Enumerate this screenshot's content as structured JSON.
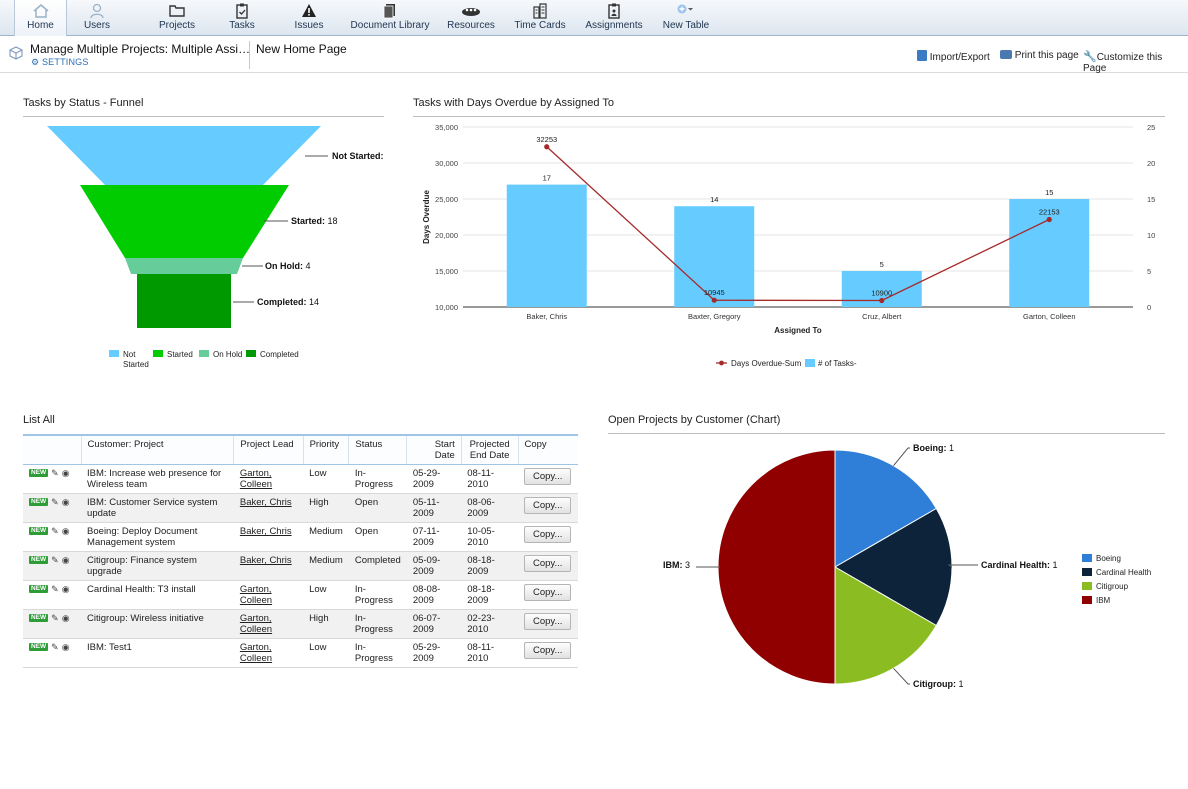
{
  "nav": {
    "items": [
      {
        "label": "Home",
        "icon": "home-icon"
      },
      {
        "label": "Users",
        "icon": "user-icon"
      },
      {
        "label": "Projects",
        "icon": "folder-icon"
      },
      {
        "label": "Tasks",
        "icon": "clipboard-icon"
      },
      {
        "label": "Issues",
        "icon": "warning-icon"
      },
      {
        "label": "Document Library",
        "icon": "documents-icon"
      },
      {
        "label": "Resources",
        "icon": "resources-icon"
      },
      {
        "label": "Time Cards",
        "icon": "building-icon"
      },
      {
        "label": "Assignments",
        "icon": "assignment-icon"
      },
      {
        "label": "New Table",
        "icon": "add-icon"
      }
    ]
  },
  "header": {
    "project_title": "Manage Multiple Projects: Multiple Assi…",
    "settings_label": "SETTINGS",
    "page_name": "New Home Page",
    "import_export": "Import/Export",
    "print": "Print this page",
    "customize": "Customize this Page"
  },
  "funnel": {
    "title": "Tasks by Status - Funnel",
    "chart_data": {
      "type": "funnel",
      "categories": [
        "Not Started",
        "Started",
        "On Hold",
        "Completed"
      ],
      "values": [
        null,
        18,
        4,
        14
      ],
      "labels": [
        "Not Started:",
        "Started: 18",
        "On Hold: 4",
        "Completed: 14"
      ],
      "legend": [
        "Not Started",
        "Started",
        "On Hold",
        "Completed"
      ],
      "colors": [
        "#66ccff",
        "#00cc00",
        "#66cc99",
        "#009900"
      ]
    }
  },
  "combo": {
    "title": "Tasks with Days Overdue by Assigned To",
    "chart_data": {
      "type": "bar",
      "categories": [
        "Baker, Chris",
        "Baxter, Gregory",
        "Cruz, Albert",
        "Garton, Colleen"
      ],
      "series": [
        {
          "name": "# of Tasks-",
          "type": "bar",
          "axis": "right",
          "values": [
            17,
            14,
            5,
            15
          ]
        },
        {
          "name": "Days Overdue-Sum",
          "type": "line",
          "axis": "left",
          "values": [
            32253,
            10945,
            10900,
            22153
          ]
        }
      ],
      "xlabel": "Assigned To",
      "ylabel": "Days Overdue",
      "ylim": [
        10000,
        35000
      ],
      "yticks": [
        "10,000",
        "15,000",
        "20,000",
        "25,000",
        "30,000",
        "35,000"
      ],
      "y2lim": [
        0,
        25
      ],
      "y2ticks": [
        "0",
        "5",
        "10",
        "15",
        "20",
        "25"
      ],
      "colors": {
        "bar": "#66ccff",
        "line": "#a52a2a"
      },
      "legend": "bottom"
    }
  },
  "list": {
    "title": "List All",
    "columns": [
      "",
      "Customer: Project",
      "Project Lead",
      "Priority",
      "Status",
      "Start Date",
      "Projected End Date",
      "Copy"
    ],
    "new_badge": "NEW",
    "copy_label": "Copy...",
    "rows": [
      {
        "project": "IBM: Increase web presence for Wireless team",
        "lead": "Garton, Colleen",
        "priority": "Low",
        "status": "In-Progress",
        "start": "05-29-2009",
        "end": "08-11-2010"
      },
      {
        "project": "IBM: Customer Service system update",
        "lead": "Baker, Chris",
        "priority": "High",
        "status": "Open",
        "start": "05-11-2009",
        "end": "08-06-2009"
      },
      {
        "project": "Boeing: Deploy Document Management system",
        "lead": "Baker, Chris",
        "priority": "Medium",
        "status": "Open",
        "start": "07-11-2009",
        "end": "10-05-2010"
      },
      {
        "project": "Citigroup: Finance system upgrade",
        "lead": "Baker, Chris",
        "priority": "Medium",
        "status": "Completed",
        "start": "05-09-2009",
        "end": "08-18-2009"
      },
      {
        "project": "Cardinal Health: T3 install",
        "lead": "Garton, Colleen",
        "priority": "Low",
        "status": "In-Progress",
        "start": "08-08-2009",
        "end": "08-18-2009"
      },
      {
        "project": "Citigroup: Wireless initiative",
        "lead": "Garton, Colleen",
        "priority": "High",
        "status": "In-Progress",
        "start": "06-07-2009",
        "end": "02-23-2010"
      },
      {
        "project": "IBM: Test1",
        "lead": "Garton, Colleen",
        "priority": "Low",
        "status": "In-Progress",
        "start": "05-29-2009",
        "end": "08-11-2010"
      }
    ]
  },
  "pie": {
    "title": "Open Projects by Customer (Chart)",
    "chart_data": {
      "type": "pie",
      "categories": [
        "Boeing",
        "Cardinal Health",
        "Citigroup",
        "IBM"
      ],
      "values": [
        1,
        1,
        1,
        3
      ],
      "colors": [
        "#2f7ed8",
        "#0d233a",
        "#8bbc21",
        "#910000"
      ],
      "legend": "right"
    }
  }
}
